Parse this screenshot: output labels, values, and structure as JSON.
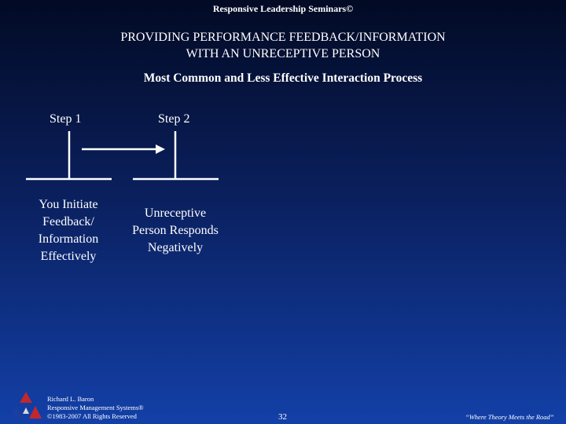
{
  "header": {
    "seminar": "Responsive Leadership Seminars©"
  },
  "title": {
    "line1": "PROVIDING PERFORMANCE FEEDBACK/INFORMATION",
    "line2": "WITH AN UNRECEPTIVE PERSON"
  },
  "subtitle": "Most Common and Less Effective Interaction Process",
  "steps": [
    {
      "label": "Step 1",
      "desc_lines": [
        "You Initiate",
        "Feedback/",
        "Information",
        "Effectively"
      ]
    },
    {
      "label": "Step 2",
      "desc_lines": [
        "Unreceptive",
        "Person Responds",
        "Negatively"
      ]
    }
  ],
  "footer": {
    "author_lines": [
      "Richard L. Baron",
      "Responsive Management Systems®",
      "©1983-2007 All Rights Reserved"
    ],
    "page_number": "32",
    "tagline": "“Where Theory Meets the Road”"
  },
  "colors": {
    "background_top": "#020a24",
    "background_bottom": "#1340a8",
    "logo_red": "#c0282d",
    "logo_blue": "#1a3fa0"
  },
  "icons": {
    "logo": "triangle-logo-icon",
    "arrow": "arrow-right-icon"
  }
}
